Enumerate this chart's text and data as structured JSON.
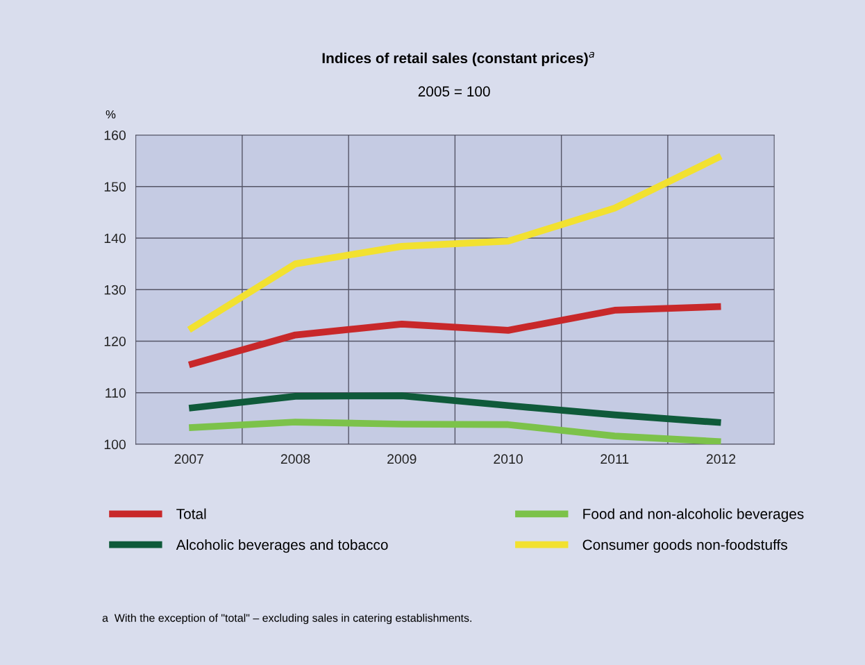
{
  "chart_data": {
    "type": "line",
    "title": "Indices of retail sales (constant prices)$^{a}$",
    "subtitle": "2005 = 100",
    "ylabel": "%",
    "categories": [
      "2007",
      "2008",
      "2009",
      "2010",
      "2011",
      "2012"
    ],
    "series": [
      {
        "name": "Total",
        "color": "#c8282a",
        "values": [
          115.4,
          121.2,
          123.3,
          122.1,
          126.0,
          126.7
        ]
      },
      {
        "name": "Alcoholic beverages and tobacco",
        "color": "#0f5a3a",
        "values": [
          107.0,
          109.3,
          109.4,
          107.5,
          105.7,
          104.2
        ]
      },
      {
        "name": "Food and non-alcoholic beverages",
        "color": "#7cc24a",
        "values": [
          103.2,
          104.3,
          103.9,
          103.8,
          101.6,
          100.5
        ]
      },
      {
        "name": "Consumer goods non-foodstuffs",
        "color": "#f2e130",
        "values": [
          122.2,
          135.0,
          138.4,
          139.4,
          145.8,
          155.9
        ]
      }
    ],
    "ylim": [
      100,
      160
    ],
    "yticks": [
      100,
      110,
      120,
      130,
      140,
      150,
      160
    ],
    "grid": true,
    "legend": "bottom",
    "marker": "none",
    "line_style": "solid",
    "annotations": [
      "a  With the exception of \"total\" – excluding sales in catering establishments."
    ]
  }
}
